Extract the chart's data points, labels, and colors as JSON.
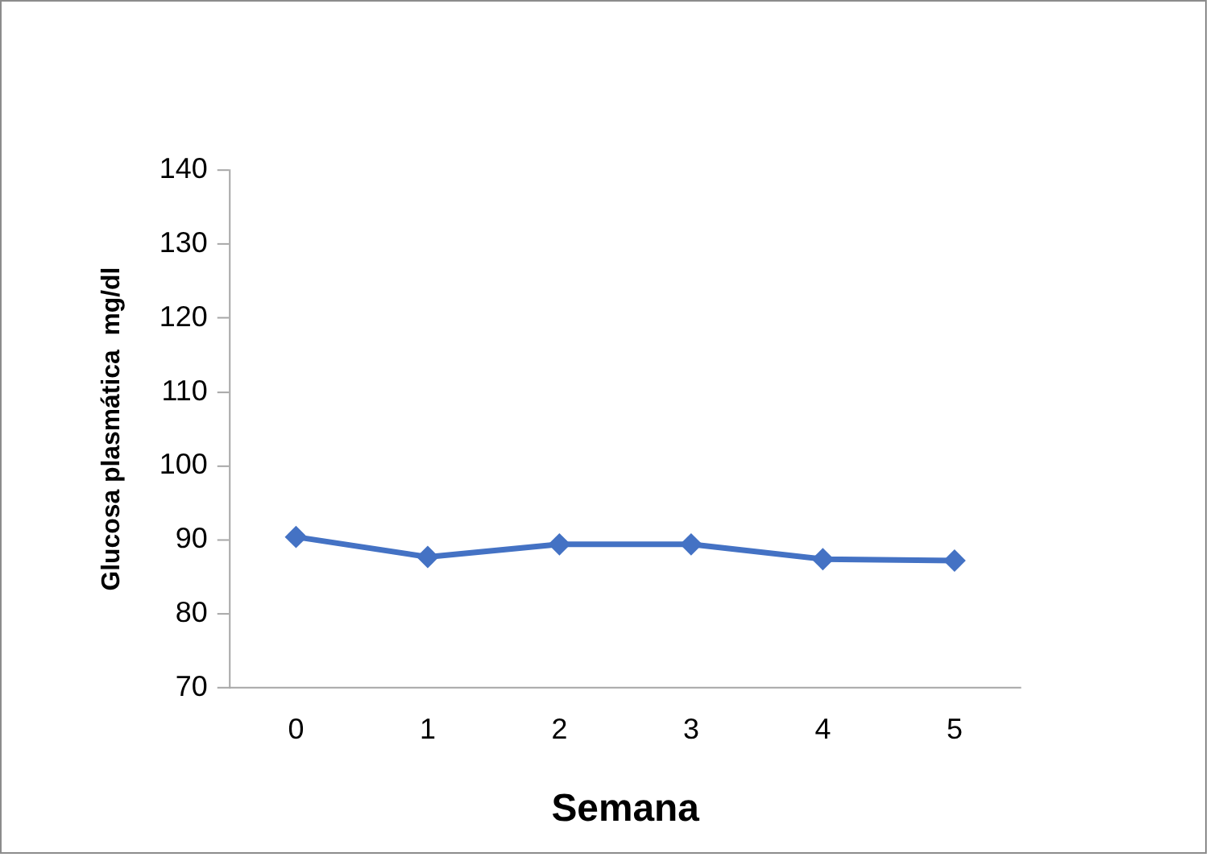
{
  "chart_data": {
    "type": "line",
    "xlabel": "Semana",
    "ylabel": "Glucosa plasmática  mg/dl",
    "categories": [
      "0",
      "1",
      "2",
      "3",
      "4",
      "5"
    ],
    "series": [
      {
        "color": "#4472c4",
        "values": [
          90.4,
          87.7,
          89.4,
          89.4,
          87.4,
          87.2
        ]
      }
    ],
    "ylim": [
      70,
      140
    ],
    "yticks": [
      70,
      80,
      90,
      100,
      110,
      120,
      130,
      140
    ],
    "grid": false,
    "legend": false,
    "marker": "diamond",
    "line_style": "solid"
  }
}
